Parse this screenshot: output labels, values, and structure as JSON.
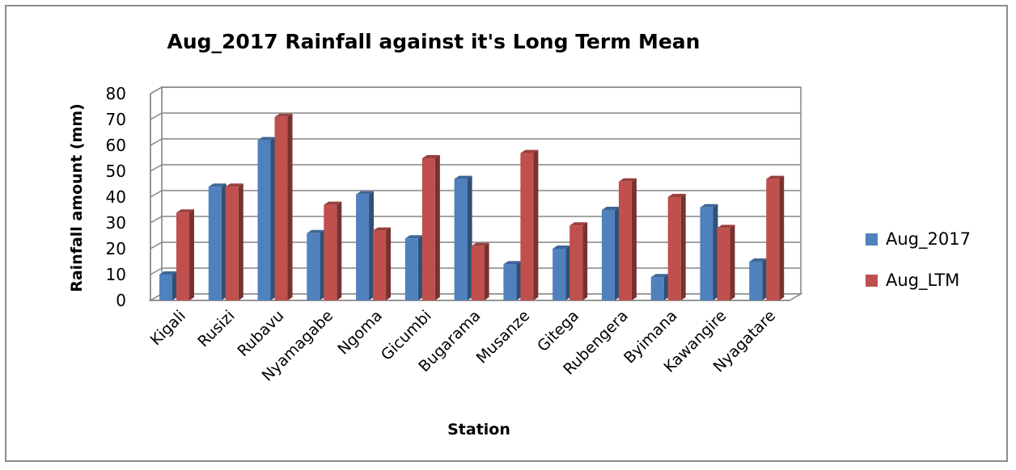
{
  "chart_data": {
    "type": "bar",
    "title": "Aug_2017 Rainfall against it's Long Term Mean",
    "xlabel": "Station",
    "ylabel": "Rainfall amount (mm)",
    "ylim": [
      0,
      80
    ],
    "yticks": [
      "0",
      "10",
      "20",
      "30",
      "40",
      "50",
      "60",
      "70",
      "80"
    ],
    "grid": true,
    "legend_position": "right",
    "categories": [
      "Kigali",
      "Rusizi",
      "Rubavu",
      "Nyamagabe",
      "Ngoma",
      "Gicumbi",
      "Bugarama",
      "Musanze",
      "Gitega",
      "Rubengera",
      "Byimana",
      "Kawangire",
      "Nyagatare"
    ],
    "series": [
      {
        "name": "Aug_2017",
        "color": "#4f81bd",
        "values": [
          10,
          44,
          62,
          26,
          41,
          24,
          47,
          14,
          20,
          35,
          9,
          36,
          15
        ]
      },
      {
        "name": "Aug_LTM",
        "color": "#c0504d",
        "values": [
          34,
          44,
          71,
          37,
          27,
          55,
          21,
          57,
          29,
          46,
          40,
          28,
          47
        ]
      }
    ]
  }
}
